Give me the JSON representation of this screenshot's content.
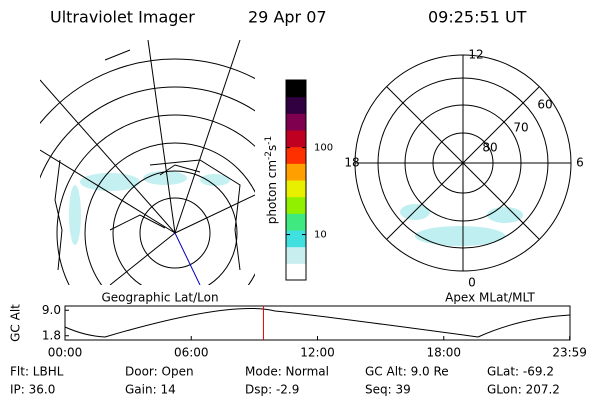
{
  "header": {
    "title": "Ultraviolet Imager",
    "date": "29 Apr 07",
    "time": "09:25:51 UT"
  },
  "colorbar": {
    "label_parts": [
      "photon cm",
      "-2",
      "s",
      "-1"
    ],
    "log": true,
    "lim": [
      3,
      600
    ],
    "ticks": [
      10,
      100
    ],
    "colors": [
      "#ffffff",
      "#c8eef0",
      "#40e0e0",
      "#40e880",
      "#90f000",
      "#e8f000",
      "#ffa000",
      "#ff3000",
      "#c00020",
      "#800050",
      "#300040",
      "#000000"
    ]
  },
  "geo_map": {
    "caption": "Geographic Lat/Lon"
  },
  "polar_map": {
    "caption": "Apex MLat/MLT",
    "mlt_labels": [
      "12",
      "18",
      "6",
      "0"
    ],
    "lat_labels": [
      "60",
      "70",
      "80"
    ]
  },
  "orbit": {
    "ylabel": "GC Alt",
    "ylim": [
      0.6,
      10.2
    ],
    "yticks": [
      {
        "value": 1.8,
        "label": "1.8"
      },
      {
        "value": 9.0,
        "label": "9.0"
      }
    ],
    "xlim": [
      0,
      24
    ],
    "xticks": [
      {
        "value": 0,
        "label": "00:00"
      },
      {
        "value": 6,
        "label": "06:00"
      },
      {
        "value": 12,
        "label": "12:00"
      },
      {
        "value": 18,
        "label": "18:00"
      },
      {
        "value": 23.9833,
        "label": "23:59"
      }
    ]
  },
  "footer": [
    [
      "Flt: LBHL",
      "IP: 36.0"
    ],
    [
      "Door: Open",
      "Gain: 14"
    ],
    [
      "Mode: Normal",
      "Dsp:    -2.9"
    ],
    [
      "GC Alt: 9.0 Re",
      "Seq: 39"
    ],
    [
      "GLat: -69.2",
      "GLon: 207.2"
    ]
  ]
}
